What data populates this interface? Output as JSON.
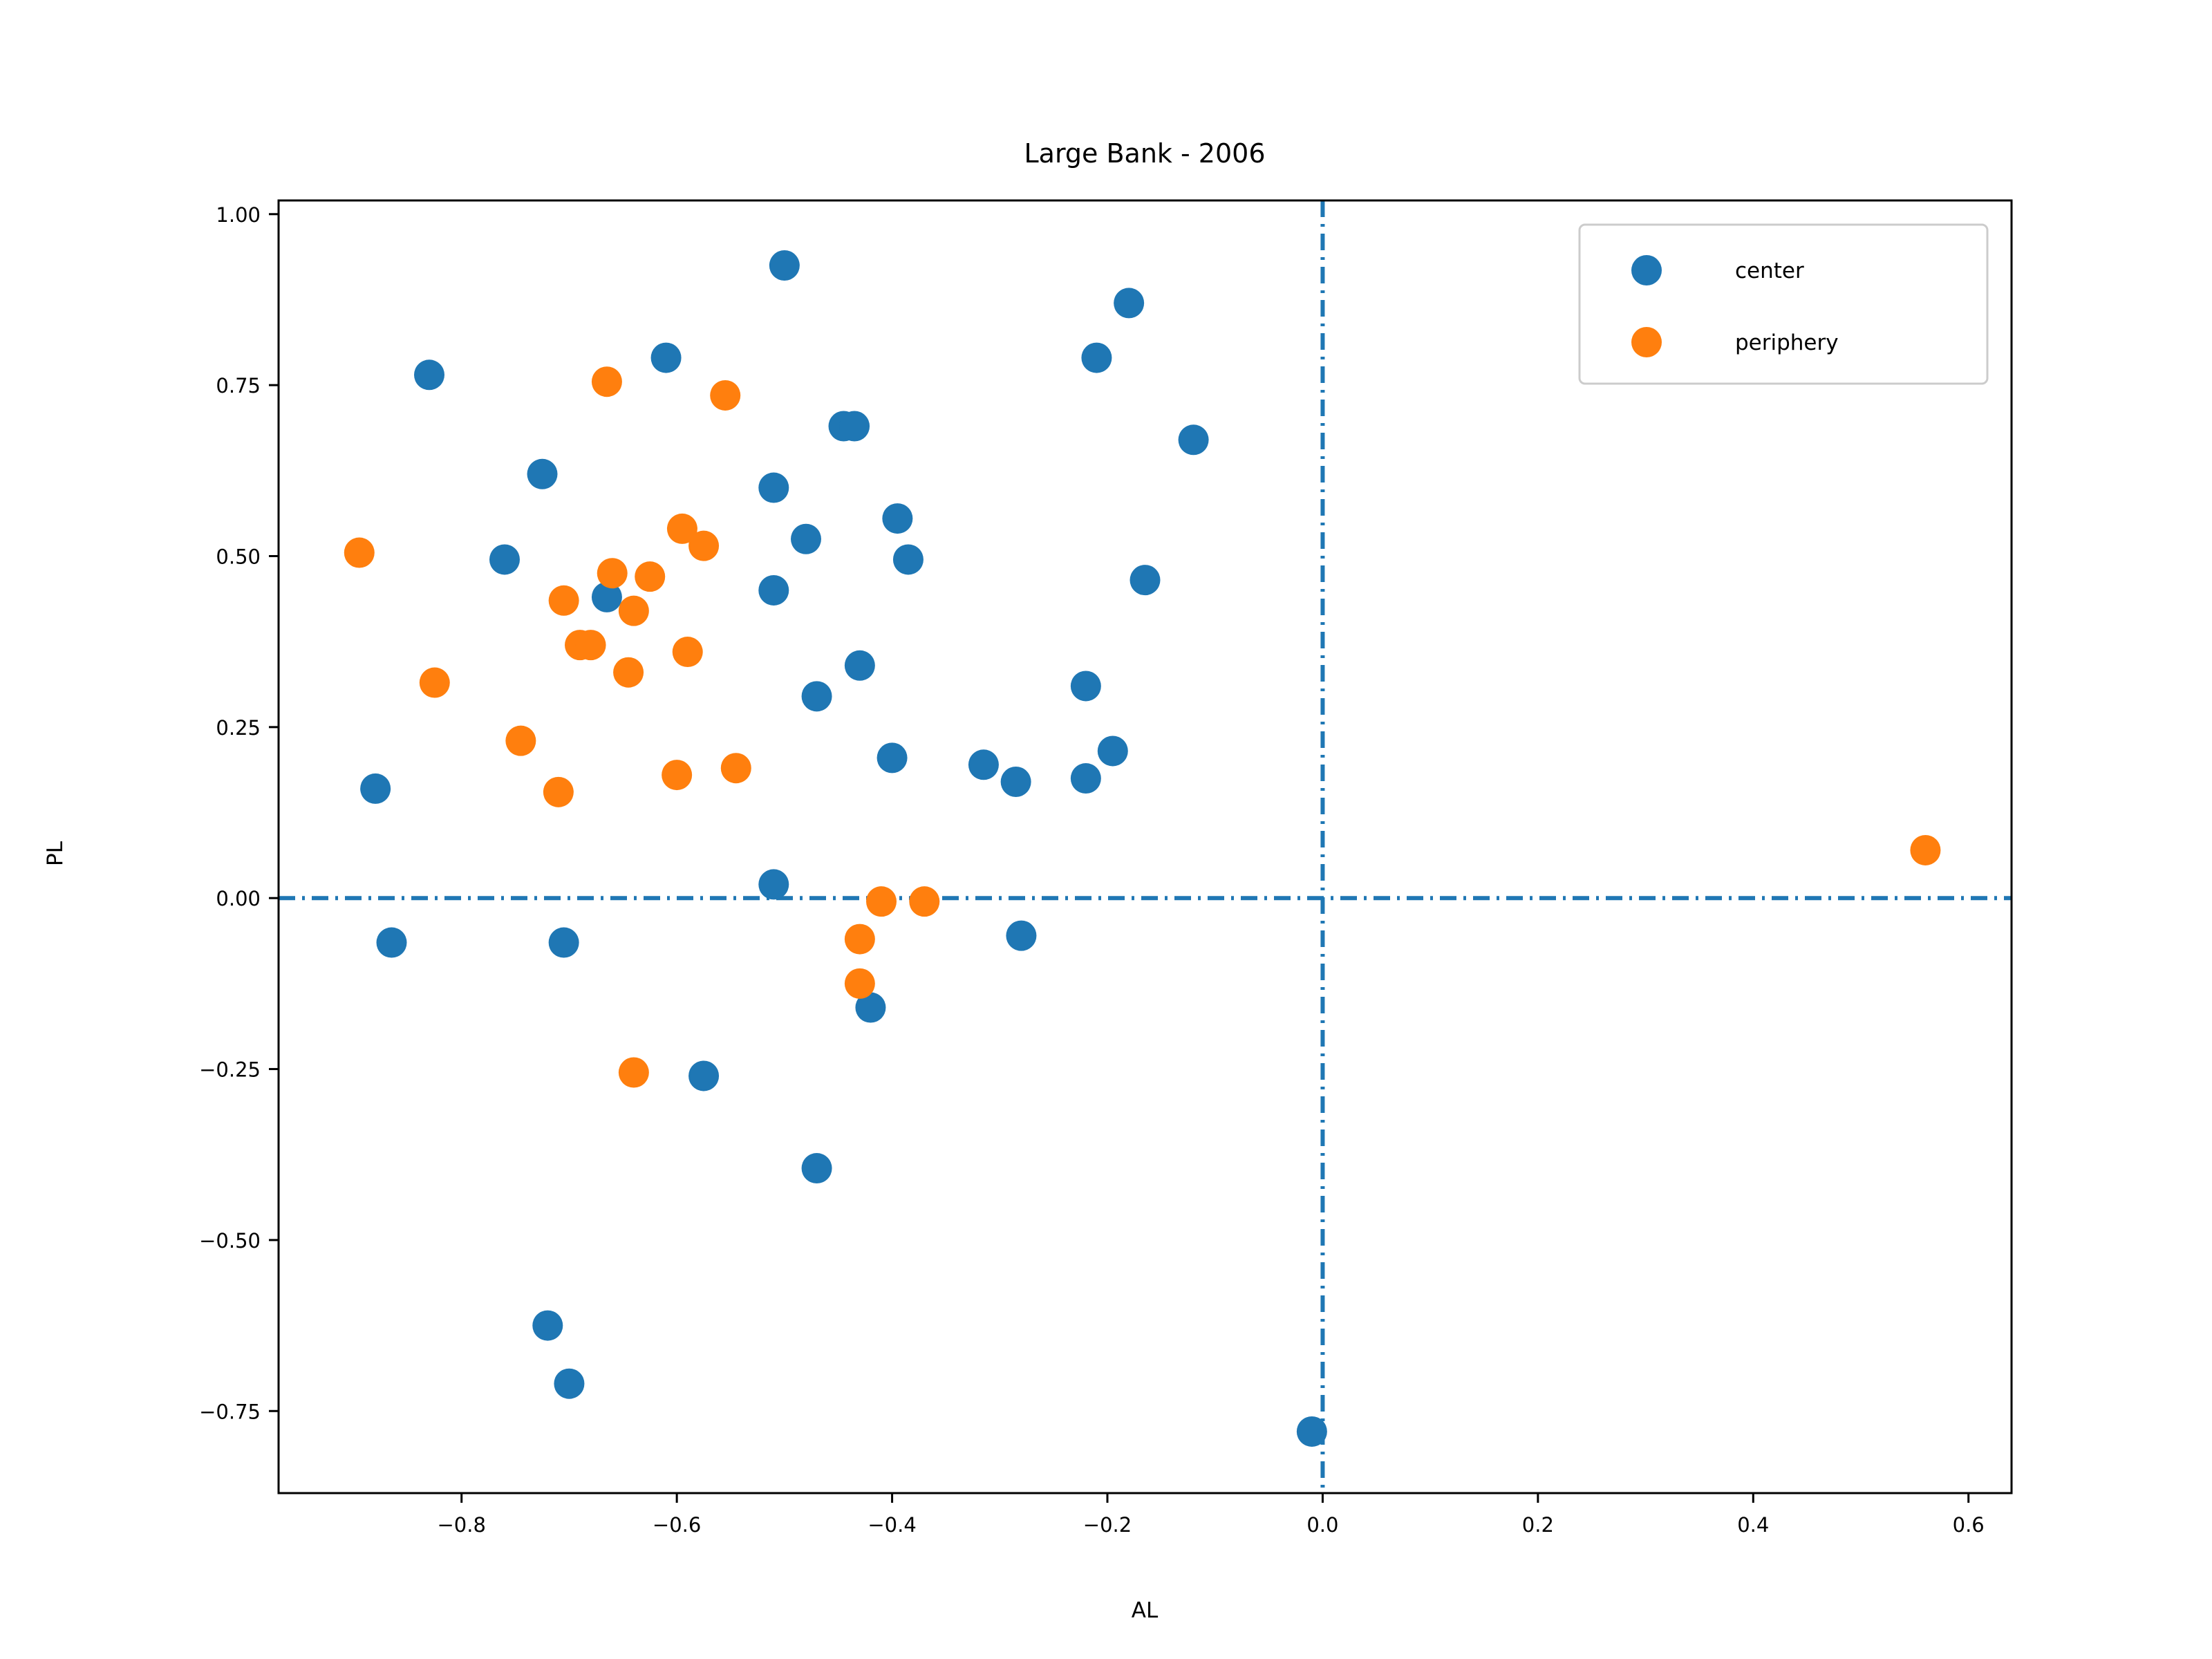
{
  "chart_data": {
    "type": "scatter",
    "title": "Large Bank - 2006",
    "xlabel": "AL",
    "ylabel": "PL",
    "xlim": [
      -0.97,
      0.64
    ],
    "ylim": [
      -0.87,
      1.02
    ],
    "xticks": [
      -0.8,
      -0.6,
      -0.4,
      -0.2,
      0.0,
      0.2,
      0.4,
      0.6
    ],
    "xtick_labels": [
      "−0.8",
      "−0.6",
      "−0.4",
      "−0.2",
      "0.0",
      "0.2",
      "0.4",
      "0.6"
    ],
    "yticks": [
      -0.75,
      -0.5,
      -0.25,
      0.0,
      0.25,
      0.5,
      0.75,
      1.0
    ],
    "ytick_labels": [
      "−0.75",
      "−0.50",
      "−0.25",
      "0.00",
      "0.25",
      "0.50",
      "0.75",
      "1.00"
    ],
    "reference_lines": {
      "x": 0.0,
      "y": 0.0,
      "style": "dashdot",
      "color": "#1f77b4"
    },
    "grid": false,
    "legend_position": "upper right",
    "series": [
      {
        "name": "center",
        "color": "#1f77b4",
        "points": [
          [
            -0.5,
            0.925
          ],
          [
            -0.18,
            0.87
          ],
          [
            -0.83,
            0.765
          ],
          [
            -0.61,
            0.79
          ],
          [
            -0.21,
            0.79
          ],
          [
            -0.12,
            0.67
          ],
          [
            -0.445,
            0.69
          ],
          [
            -0.435,
            0.69
          ],
          [
            -0.725,
            0.62
          ],
          [
            -0.51,
            0.6
          ],
          [
            -0.395,
            0.555
          ],
          [
            -0.48,
            0.525
          ],
          [
            -0.76,
            0.495
          ],
          [
            -0.385,
            0.495
          ],
          [
            -0.165,
            0.465
          ],
          [
            -0.51,
            0.45
          ],
          [
            -0.665,
            0.44
          ],
          [
            -0.43,
            0.34
          ],
          [
            -0.22,
            0.31
          ],
          [
            -0.47,
            0.295
          ],
          [
            -0.195,
            0.215
          ],
          [
            -0.4,
            0.205
          ],
          [
            -0.315,
            0.195
          ],
          [
            -0.285,
            0.17
          ],
          [
            -0.22,
            0.175
          ],
          [
            -0.88,
            0.16
          ],
          [
            -0.51,
            0.02
          ],
          [
            -0.865,
            -0.065
          ],
          [
            -0.705,
            -0.065
          ],
          [
            -0.28,
            -0.055
          ],
          [
            -0.42,
            -0.16
          ],
          [
            -0.575,
            -0.26
          ],
          [
            -0.47,
            -0.395
          ],
          [
            -0.72,
            -0.625
          ],
          [
            -0.7,
            -0.71
          ],
          [
            -0.01,
            -0.78
          ]
        ]
      },
      {
        "name": "periphery",
        "color": "#ff7f0e",
        "points": [
          [
            -0.665,
            0.755
          ],
          [
            -0.555,
            0.735
          ],
          [
            -0.895,
            0.505
          ],
          [
            -0.595,
            0.54
          ],
          [
            -0.575,
            0.515
          ],
          [
            -0.66,
            0.475
          ],
          [
            -0.625,
            0.47
          ],
          [
            -0.705,
            0.435
          ],
          [
            -0.64,
            0.42
          ],
          [
            -0.69,
            0.37
          ],
          [
            -0.68,
            0.37
          ],
          [
            -0.59,
            0.36
          ],
          [
            -0.645,
            0.33
          ],
          [
            -0.825,
            0.315
          ],
          [
            -0.745,
            0.23
          ],
          [
            -0.71,
            0.155
          ],
          [
            -0.6,
            0.18
          ],
          [
            -0.545,
            0.19
          ],
          [
            -0.41,
            -0.005
          ],
          [
            -0.37,
            -0.005
          ],
          [
            -0.43,
            -0.06
          ],
          [
            -0.43,
            -0.125
          ],
          [
            -0.64,
            -0.255
          ],
          [
            0.56,
            0.07
          ]
        ]
      }
    ]
  }
}
